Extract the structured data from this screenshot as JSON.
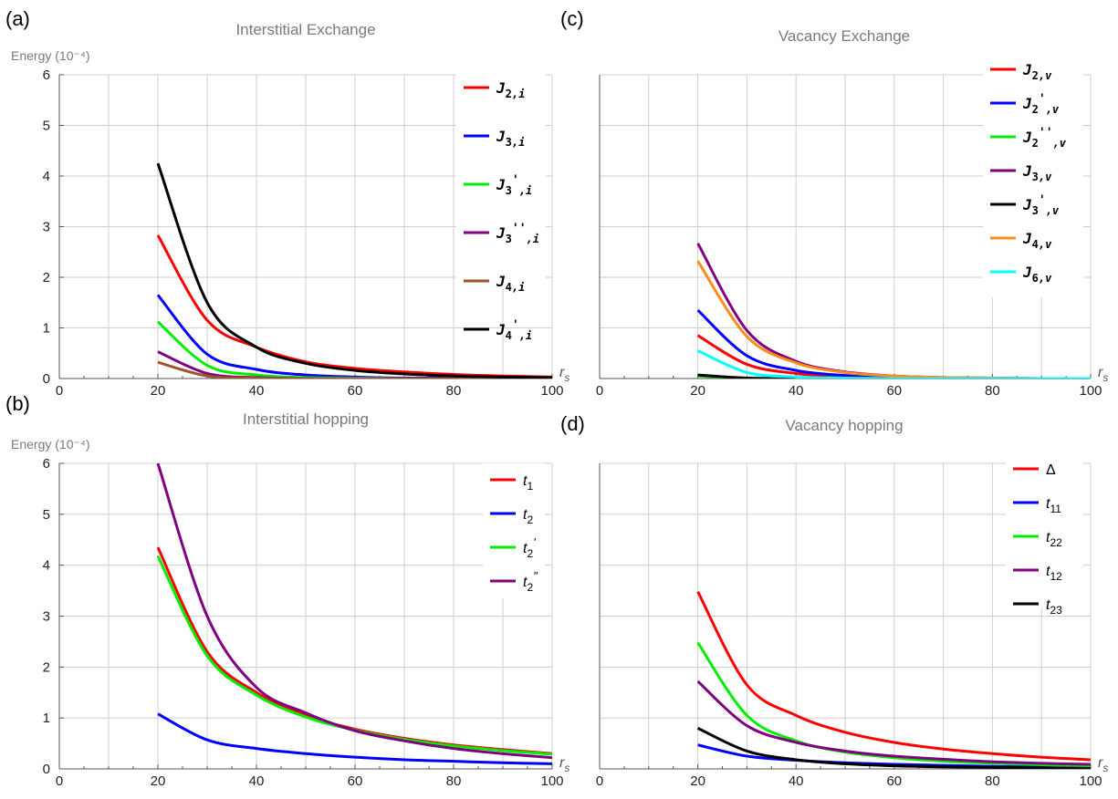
{
  "panel_labels": {
    "a": "(a)",
    "b": "(b)",
    "c": "(c)",
    "d": "(d)"
  },
  "y_axis_label": "Energy (10⁻⁴)",
  "x_axis_label": "rs",
  "chart_data": [
    {
      "type": "line",
      "id": "a",
      "title": "Interstitial Exchange",
      "ylabel": "Energy (10^-4)",
      "xlabel": "rs",
      "xlim": [
        0,
        100
      ],
      "ylim": [
        0,
        6
      ],
      "xticks": [
        0,
        20,
        40,
        60,
        80,
        100
      ],
      "yticks": [
        0,
        1,
        2,
        3,
        4,
        5,
        6
      ],
      "show_y_ticks": true,
      "grid": true,
      "legend_position": "top-right",
      "series": [
        {
          "name": "J2,i",
          "label_base": "J",
          "label_sub": "2,i",
          "label_primes": "",
          "color": "#ff0000",
          "x": [
            20,
            30,
            40,
            50,
            60,
            70,
            80,
            90,
            100
          ],
          "values": [
            2.83,
            1.15,
            0.62,
            0.33,
            0.2,
            0.13,
            0.08,
            0.05,
            0.03
          ]
        },
        {
          "name": "J3,i",
          "label_base": "J",
          "label_sub": "3,i",
          "label_primes": "",
          "color": "#0000ff",
          "x": [
            20,
            30,
            40,
            50,
            60,
            70,
            80,
            90,
            100
          ],
          "values": [
            1.65,
            0.48,
            0.18,
            0.07,
            0.03,
            0.01,
            0.01,
            0.0,
            0.0
          ]
        },
        {
          "name": "J3',i",
          "label_base": "J",
          "label_sub": "3,i",
          "label_primes": "'",
          "color": "#00ee00",
          "x": [
            20,
            30,
            40,
            50,
            60,
            70,
            80,
            90,
            100
          ],
          "values": [
            1.12,
            0.26,
            0.07,
            0.02,
            0.01,
            0.0,
            0.0,
            0.0,
            0.0
          ]
        },
        {
          "name": "J3'',i",
          "label_base": "J",
          "label_sub": "3,i",
          "label_primes": "''",
          "color": "#800080",
          "x": [
            20,
            30,
            40,
            50,
            60,
            70,
            80,
            90,
            100
          ],
          "values": [
            0.53,
            0.1,
            0.02,
            0.0,
            0.0,
            0.0,
            0.0,
            0.0,
            0.0
          ]
        },
        {
          "name": "J4,i",
          "label_base": "J",
          "label_sub": "4,i",
          "label_primes": "",
          "color": "#a0522d",
          "x": [
            20,
            30,
            40,
            50,
            60,
            70,
            80,
            90,
            100
          ],
          "values": [
            0.32,
            0.05,
            0.01,
            0.0,
            0.0,
            0.0,
            0.0,
            0.0,
            0.0
          ]
        },
        {
          "name": "J4',i",
          "label_base": "J",
          "label_sub": "4,i",
          "label_primes": "'",
          "color": "#000000",
          "x": [
            20,
            30,
            40,
            50,
            60,
            70,
            80,
            90,
            100
          ],
          "values": [
            4.25,
            1.5,
            0.62,
            0.3,
            0.16,
            0.09,
            0.05,
            0.03,
            0.02
          ]
        }
      ]
    },
    {
      "type": "line",
      "id": "c",
      "title": "Vacancy Exchange",
      "xlabel": "rs",
      "xlim": [
        0,
        100
      ],
      "ylim": [
        0,
        6
      ],
      "xticks": [
        0,
        20,
        40,
        60,
        80,
        100
      ],
      "show_y_ticks": false,
      "grid": true,
      "legend_position": "top-right",
      "series": [
        {
          "name": "J2,v",
          "label_base": "J",
          "label_sub": "2,v",
          "label_primes": "",
          "color": "#ff0000",
          "x": [
            20,
            30,
            40,
            50,
            60,
            70,
            80,
            90,
            100
          ],
          "values": [
            0.85,
            0.28,
            0.1,
            0.04,
            0.02,
            0.01,
            0.0,
            0.0,
            0.0
          ]
        },
        {
          "name": "J2',v",
          "label_base": "J",
          "label_sub": "2,v",
          "label_primes": "'",
          "color": "#0000ff",
          "x": [
            20,
            30,
            40,
            50,
            60,
            70,
            80,
            90,
            100
          ],
          "values": [
            1.35,
            0.45,
            0.16,
            0.06,
            0.02,
            0.01,
            0.0,
            0.0,
            0.0
          ]
        },
        {
          "name": "J2'',v",
          "label_base": "J",
          "label_sub": "2,v",
          "label_primes": "''",
          "color": "#00ee00",
          "x": [
            20,
            30,
            40,
            50,
            60,
            70,
            80,
            90,
            100
          ],
          "values": [
            0.05,
            0.01,
            0.0,
            0.0,
            0.0,
            0.0,
            0.0,
            0.0,
            0.0
          ]
        },
        {
          "name": "J3,v",
          "label_base": "J",
          "label_sub": "3,v",
          "label_primes": "",
          "color": "#800080",
          "x": [
            20,
            30,
            40,
            50,
            60,
            70,
            80,
            90,
            100
          ],
          "values": [
            2.67,
            0.95,
            0.34,
            0.13,
            0.05,
            0.02,
            0.01,
            0.0,
            0.0
          ]
        },
        {
          "name": "J3',v",
          "label_base": "J",
          "label_sub": "3,v",
          "label_primes": "'",
          "color": "#000000",
          "x": [
            20,
            30,
            40,
            50,
            60,
            70,
            80,
            90,
            100
          ],
          "values": [
            0.07,
            0.01,
            0.0,
            0.0,
            0.0,
            0.0,
            0.0,
            0.0,
            0.0
          ]
        },
        {
          "name": "J4,v",
          "label_base": "J",
          "label_sub": "4,v",
          "label_primes": "",
          "color": "#ff8c1a",
          "x": [
            20,
            30,
            40,
            50,
            60,
            70,
            80,
            90,
            100
          ],
          "values": [
            2.32,
            0.83,
            0.31,
            0.12,
            0.05,
            0.02,
            0.01,
            0.0,
            0.0
          ]
        },
        {
          "name": "J6,v",
          "label_base": "J",
          "label_sub": "6,v",
          "label_primes": "",
          "color": "#00ffff",
          "x": [
            20,
            30,
            40,
            50,
            60,
            70,
            80,
            90,
            100
          ],
          "values": [
            0.55,
            0.12,
            0.03,
            0.01,
            0.0,
            0.0,
            0.0,
            0.0,
            0.0
          ]
        }
      ]
    },
    {
      "type": "line",
      "id": "b",
      "title": "Interstitial hopping",
      "ylabel": "Energy (10^-4)",
      "xlabel": "rs",
      "xlim": [
        0,
        100
      ],
      "ylim": [
        0,
        6
      ],
      "xticks": [
        0,
        20,
        40,
        60,
        80,
        100
      ],
      "yticks": [
        0,
        1,
        2,
        3,
        4,
        5,
        6
      ],
      "show_y_ticks": true,
      "grid": true,
      "legend_position": "top-right",
      "series": [
        {
          "name": "t1",
          "label_base": "t",
          "label_sub": "1",
          "label_primes": "",
          "color": "#ff0000",
          "x": [
            20,
            30,
            40,
            50,
            60,
            70,
            80,
            90,
            100
          ],
          "values": [
            4.35,
            2.3,
            1.5,
            1.05,
            0.78,
            0.6,
            0.47,
            0.38,
            0.3
          ]
        },
        {
          "name": "t2",
          "label_base": "t",
          "label_sub": "2",
          "label_primes": "",
          "color": "#0000ff",
          "x": [
            20,
            30,
            40,
            50,
            60,
            70,
            80,
            90,
            100
          ],
          "values": [
            1.08,
            0.57,
            0.4,
            0.3,
            0.23,
            0.18,
            0.15,
            0.12,
            0.1
          ]
        },
        {
          "name": "t2'",
          "label_base": "t",
          "label_sub": "2",
          "label_primes": "'",
          "color": "#00ee00",
          "x": [
            20,
            30,
            40,
            50,
            60,
            70,
            80,
            90,
            100
          ],
          "values": [
            4.18,
            2.22,
            1.45,
            1.02,
            0.76,
            0.58,
            0.45,
            0.36,
            0.29
          ]
        },
        {
          "name": "t2\"",
          "label_base": "t",
          "label_sub": "2",
          "label_primes": "\"",
          "color": "#800080",
          "x": [
            20,
            30,
            40,
            50,
            60,
            70,
            80,
            90,
            100
          ],
          "values": [
            6.0,
            3.0,
            1.6,
            1.1,
            0.75,
            0.55,
            0.4,
            0.3,
            0.22
          ]
        }
      ]
    },
    {
      "type": "line",
      "id": "d",
      "title": "Vacancy hopping",
      "xlabel": "rs",
      "xlim": [
        0,
        100
      ],
      "ylim": [
        0,
        6
      ],
      "xticks": [
        0,
        20,
        40,
        60,
        80,
        100
      ],
      "show_y_ticks": false,
      "grid": true,
      "legend_position": "top-right",
      "series": [
        {
          "name": "Δ",
          "label_base": "Δ",
          "label_sub": "",
          "label_primes": "",
          "color": "#ff0000",
          "x": [
            20,
            30,
            40,
            50,
            60,
            70,
            80,
            90,
            100
          ],
          "values": [
            3.48,
            1.65,
            1.05,
            0.72,
            0.52,
            0.39,
            0.3,
            0.23,
            0.18
          ]
        },
        {
          "name": "t11",
          "label_base": "t",
          "label_sub": "11",
          "label_primes": "",
          "color": "#0000ff",
          "x": [
            20,
            30,
            40,
            50,
            60,
            70,
            80,
            90,
            100
          ],
          "values": [
            0.47,
            0.25,
            0.17,
            0.12,
            0.09,
            0.07,
            0.05,
            0.04,
            0.03
          ]
        },
        {
          "name": "t22",
          "label_base": "t",
          "label_sub": "22",
          "label_primes": "",
          "color": "#00ee00",
          "x": [
            20,
            30,
            40,
            50,
            60,
            70,
            80,
            90,
            100
          ],
          "values": [
            2.48,
            1.05,
            0.55,
            0.33,
            0.22,
            0.15,
            0.11,
            0.08,
            0.06
          ]
        },
        {
          "name": "t12",
          "label_base": "t",
          "label_sub": "12",
          "label_primes": "",
          "color": "#800080",
          "x": [
            20,
            30,
            40,
            50,
            60,
            70,
            80,
            90,
            100
          ],
          "values": [
            1.72,
            0.85,
            0.52,
            0.35,
            0.25,
            0.19,
            0.14,
            0.11,
            0.09
          ]
        },
        {
          "name": "t23",
          "label_base": "t",
          "label_sub": "23",
          "label_primes": "",
          "color": "#000000",
          "x": [
            20,
            30,
            40,
            50,
            60,
            70,
            80,
            90,
            100
          ],
          "values": [
            0.8,
            0.35,
            0.18,
            0.1,
            0.06,
            0.04,
            0.03,
            0.02,
            0.01
          ]
        }
      ]
    }
  ]
}
